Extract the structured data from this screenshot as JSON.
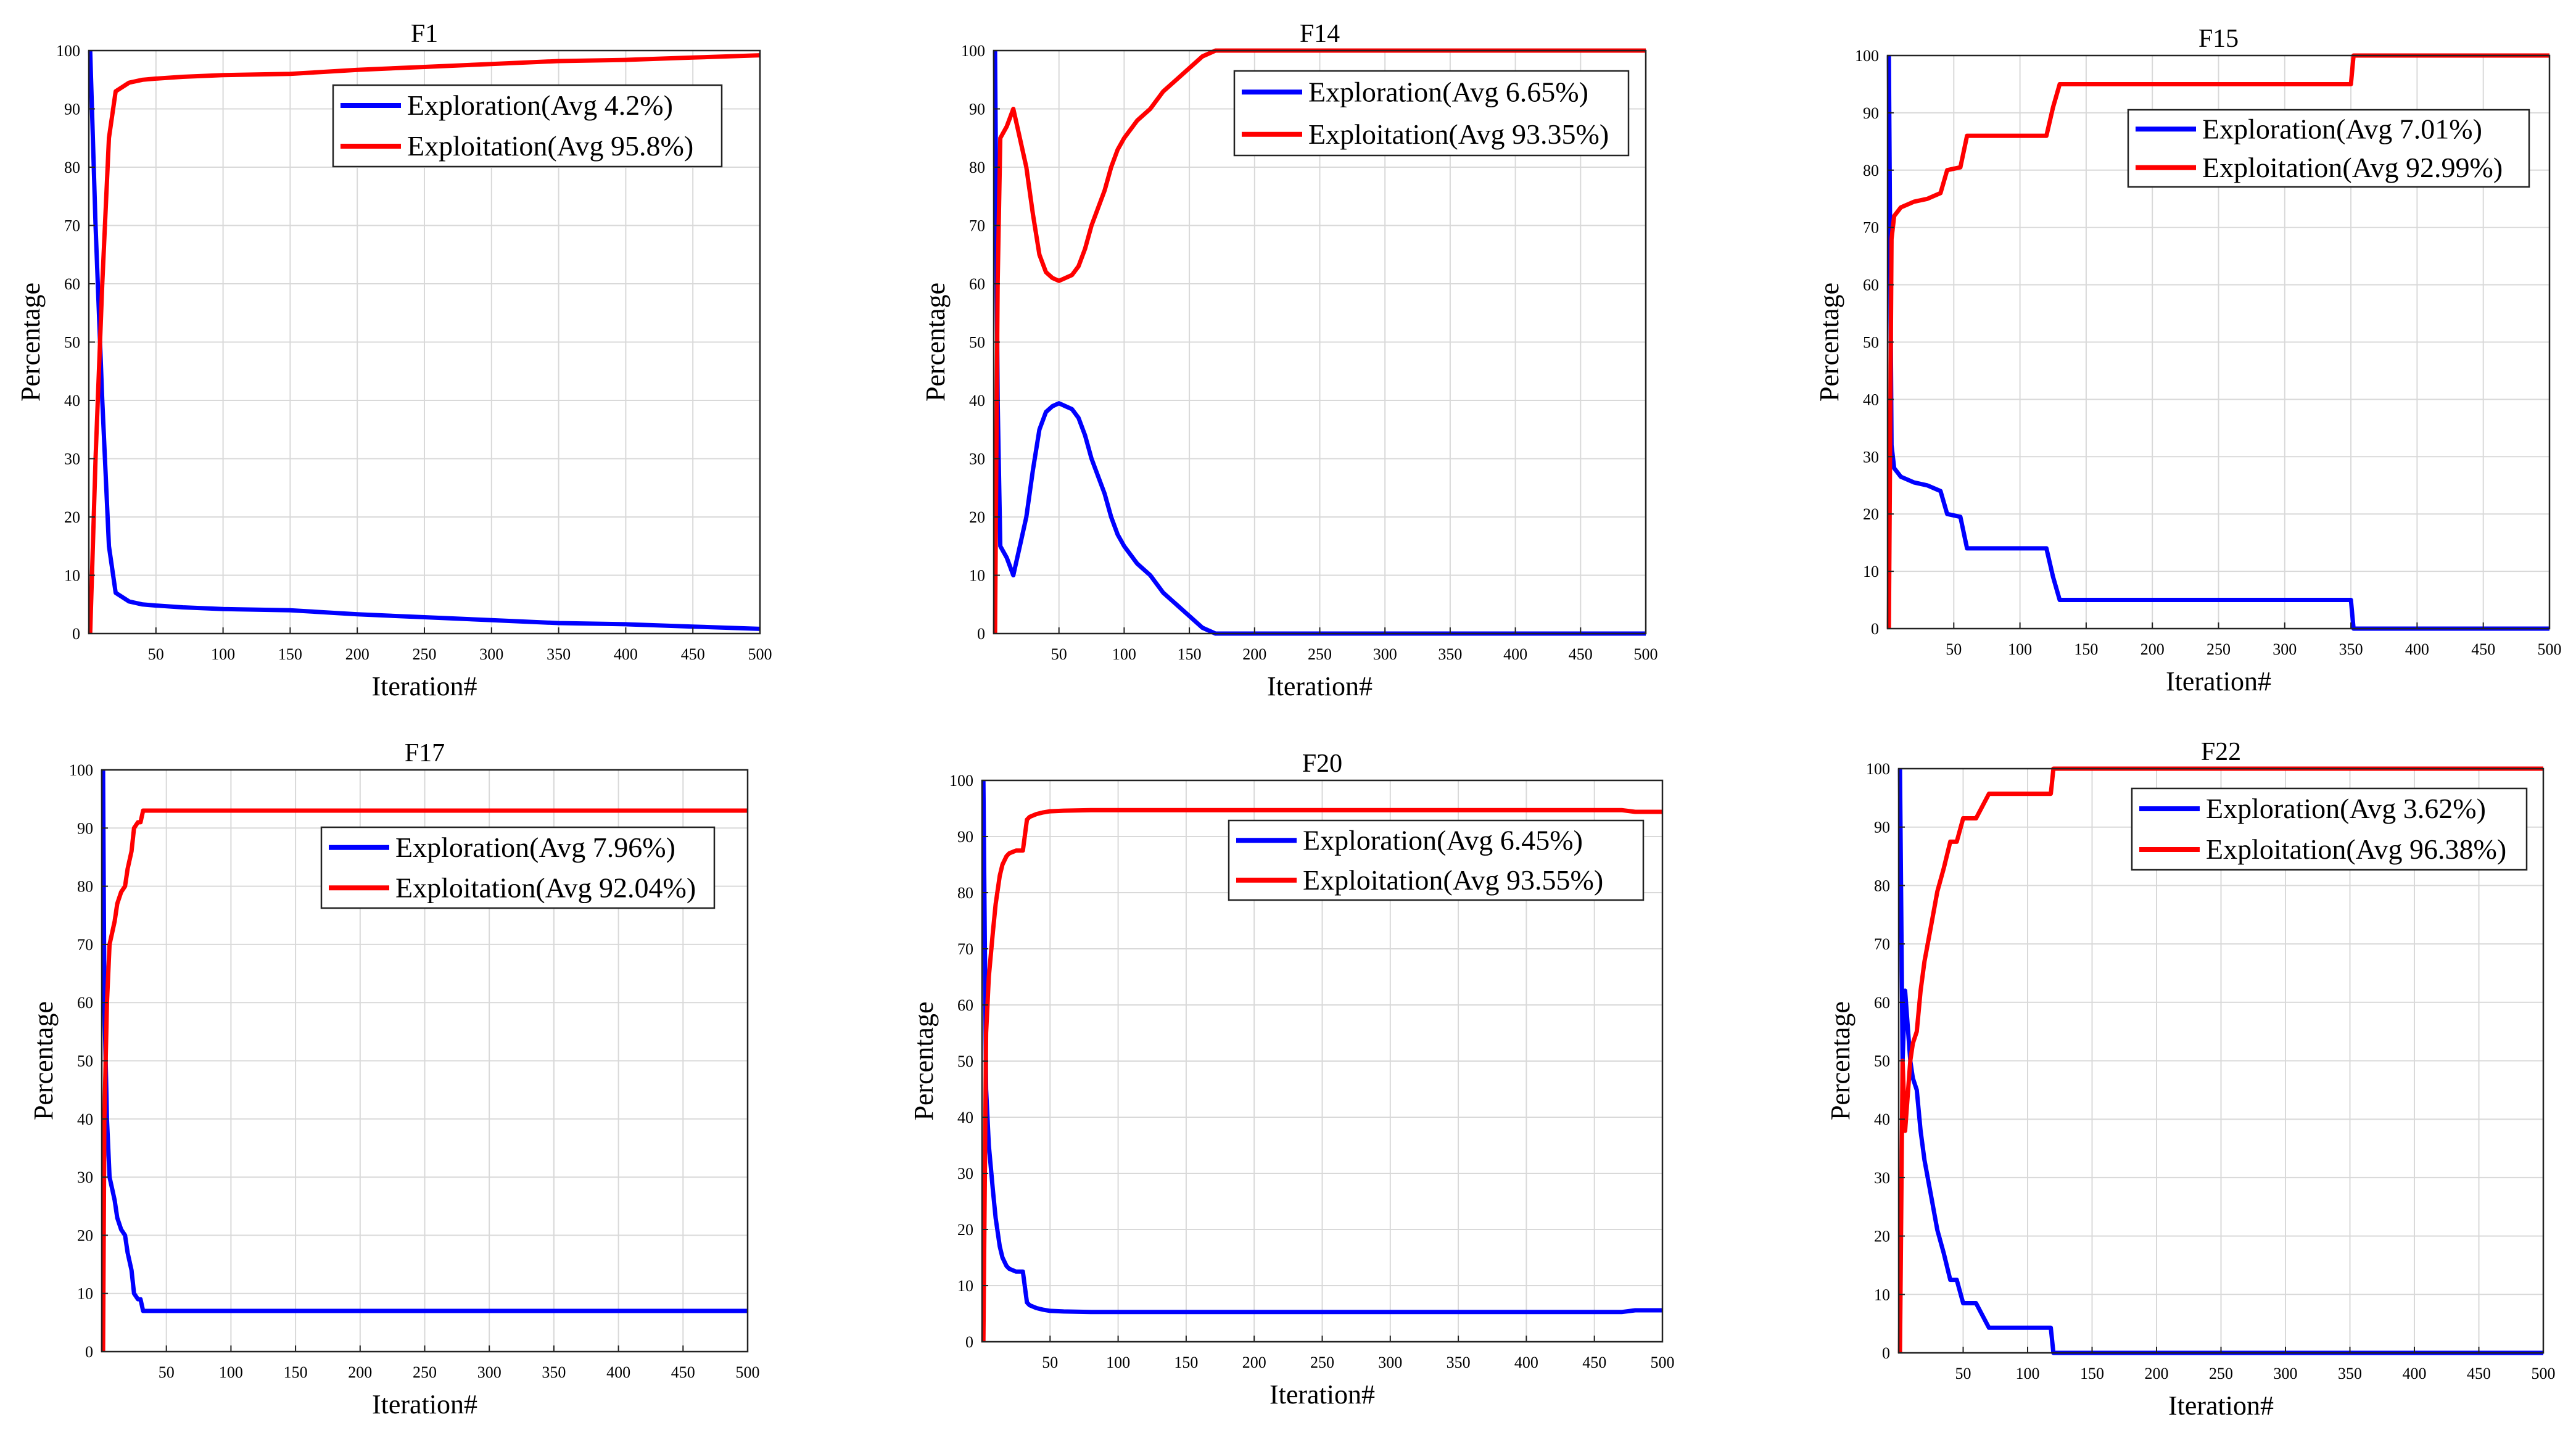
{
  "chart_data": [
    {
      "type": "line",
      "title": "F1",
      "xlabel": "Iteration#",
      "ylabel": "Percentage",
      "xlim": [
        0,
        500
      ],
      "ylim": [
        0,
        100
      ],
      "xticks": [
        50,
        100,
        150,
        200,
        250,
        300,
        350,
        400,
        450,
        500
      ],
      "yticks": [
        0,
        10,
        20,
        30,
        40,
        50,
        60,
        70,
        80,
        90,
        100
      ],
      "grid": true,
      "legend_position": "top-right",
      "series": [
        {
          "name": "Exploration(Avg 4.2%)",
          "color": "#0000ff",
          "x": [
            1,
            5,
            10,
            15,
            20,
            30,
            40,
            50,
            70,
            100,
            150,
            200,
            250,
            300,
            350,
            400,
            450,
            500
          ],
          "y": [
            100,
            70,
            40,
            15,
            7,
            5.5,
            5,
            4.8,
            4.5,
            4.2,
            4,
            3.3,
            2.8,
            2.3,
            1.8,
            1.6,
            1.2,
            0.8
          ]
        },
        {
          "name": "Exploitation(Avg 95.8%)",
          "color": "#ff0000",
          "x": [
            1,
            5,
            10,
            15,
            20,
            30,
            40,
            50,
            70,
            100,
            150,
            200,
            250,
            300,
            350,
            400,
            450,
            500
          ],
          "y": [
            0,
            30,
            60,
            85,
            93,
            94.5,
            95,
            95.2,
            95.5,
            95.8,
            96,
            96.7,
            97.2,
            97.7,
            98.2,
            98.4,
            98.8,
            99.2
          ]
        }
      ]
    },
    {
      "type": "line",
      "title": "F14",
      "xlabel": "Iteration#",
      "ylabel": "Percentage",
      "xlim": [
        0,
        500
      ],
      "ylim": [
        0,
        100
      ],
      "xticks": [
        50,
        100,
        150,
        200,
        250,
        300,
        350,
        400,
        450,
        500
      ],
      "yticks": [
        0,
        10,
        20,
        30,
        40,
        50,
        60,
        70,
        80,
        90,
        100
      ],
      "grid": true,
      "legend_position": "top-right",
      "series": [
        {
          "name": "Exploration(Avg 6.65%)",
          "color": "#0000ff",
          "x": [
            1,
            3,
            5,
            10,
            15,
            20,
            25,
            30,
            35,
            40,
            45,
            50,
            55,
            60,
            65,
            70,
            75,
            80,
            85,
            90,
            95,
            100,
            110,
            120,
            130,
            140,
            150,
            160,
            170,
            200,
            300,
            400,
            500
          ],
          "y": [
            100,
            40,
            15,
            13,
            10,
            15,
            20,
            28,
            35,
            38,
            39,
            39.5,
            39,
            38.5,
            37,
            34,
            30,
            27,
            24,
            20,
            17,
            15,
            12,
            10,
            7,
            5,
            3,
            1,
            0,
            0,
            0,
            0,
            0
          ]
        },
        {
          "name": "Exploitation(Avg 93.35%)",
          "color": "#ff0000",
          "x": [
            1,
            3,
            5,
            10,
            15,
            20,
            25,
            30,
            35,
            40,
            45,
            50,
            55,
            60,
            65,
            70,
            75,
            80,
            85,
            90,
            95,
            100,
            110,
            120,
            130,
            140,
            150,
            160,
            170,
            200,
            300,
            400,
            500
          ],
          "y": [
            0,
            60,
            85,
            87,
            90,
            85,
            80,
            72,
            65,
            62,
            61,
            60.5,
            61,
            61.5,
            63,
            66,
            70,
            73,
            76,
            80,
            83,
            85,
            88,
            90,
            93,
            95,
            97,
            99,
            100,
            100,
            100,
            100,
            100
          ]
        }
      ]
    },
    {
      "type": "line",
      "title": "F15",
      "xlabel": "Iteration#",
      "ylabel": "Percentage",
      "xlim": [
        0,
        500
      ],
      "ylim": [
        0,
        100
      ],
      "xticks": [
        50,
        100,
        150,
        200,
        250,
        300,
        350,
        400,
        450,
        500
      ],
      "yticks": [
        0,
        10,
        20,
        30,
        40,
        50,
        60,
        70,
        80,
        90,
        100
      ],
      "grid": true,
      "legend_position": "top-right",
      "series": [
        {
          "name": "Exploration(Avg 7.01%)",
          "color": "#0000ff",
          "x": [
            1,
            3,
            5,
            10,
            20,
            30,
            40,
            45,
            55,
            60,
            70,
            80,
            100,
            120,
            125,
            130,
            135,
            150,
            200,
            250,
            300,
            350,
            352,
            400,
            450,
            500
          ],
          "y": [
            100,
            32,
            28,
            26.5,
            25.5,
            25,
            24,
            20,
            19.5,
            14,
            14,
            14,
            14,
            14,
            9,
            5,
            5,
            5,
            5,
            5,
            5,
            5,
            0,
            0,
            0,
            0
          ]
        },
        {
          "name": "Exploitation(Avg 92.99%)",
          "color": "#ff0000",
          "x": [
            1,
            3,
            5,
            10,
            20,
            30,
            40,
            45,
            55,
            60,
            70,
            80,
            100,
            120,
            125,
            130,
            135,
            150,
            200,
            250,
            300,
            350,
            352,
            400,
            450,
            500
          ],
          "y": [
            0,
            68,
            72,
            73.5,
            74.5,
            75,
            76,
            80,
            80.5,
            86,
            86,
            86,
            86,
            86,
            91,
            95,
            95,
            95,
            95,
            95,
            95,
            95,
            100,
            100,
            100,
            100
          ]
        }
      ]
    },
    {
      "type": "line",
      "title": "F17",
      "xlabel": "Iteration#",
      "ylabel": "Percentage",
      "xlim": [
        0,
        500
      ],
      "ylim": [
        0,
        100
      ],
      "xticks": [
        50,
        100,
        150,
        200,
        250,
        300,
        350,
        400,
        450,
        500
      ],
      "yticks": [
        0,
        10,
        20,
        30,
        40,
        50,
        60,
        70,
        80,
        90,
        100
      ],
      "grid": true,
      "legend_position": "top-right",
      "series": [
        {
          "name": "Exploration(Avg 7.96%)",
          "color": "#0000ff",
          "x": [
            1,
            2,
            4,
            6,
            8,
            10,
            12,
            15,
            18,
            20,
            23,
            25,
            28,
            30,
            32,
            35,
            40,
            50,
            100,
            200,
            300,
            400,
            500
          ],
          "y": [
            100,
            60,
            40,
            30,
            28,
            26,
            23,
            21,
            20,
            17,
            14,
            10,
            9,
            9,
            7,
            7,
            7,
            7,
            7,
            7,
            7,
            7,
            7
          ]
        },
        {
          "name": "Exploitation(Avg 92.04%)",
          "color": "#ff0000",
          "x": [
            1,
            2,
            4,
            6,
            8,
            10,
            12,
            15,
            18,
            20,
            23,
            25,
            28,
            30,
            32,
            35,
            40,
            50,
            100,
            200,
            300,
            400,
            500
          ],
          "y": [
            0,
            40,
            60,
            70,
            72,
            74,
            77,
            79,
            80,
            83,
            86,
            90,
            91,
            91,
            93,
            93,
            93,
            93,
            93,
            93,
            93,
            93,
            93
          ]
        }
      ]
    },
    {
      "type": "line",
      "title": "F20",
      "xlabel": "Iteration#",
      "ylabel": "Percentage",
      "xlim": [
        0,
        500
      ],
      "ylim": [
        0,
        100
      ],
      "xticks": [
        50,
        100,
        150,
        200,
        250,
        300,
        350,
        400,
        450,
        500
      ],
      "yticks": [
        0,
        10,
        20,
        30,
        40,
        50,
        60,
        70,
        80,
        90,
        100
      ],
      "grid": true,
      "legend_position": "top-right",
      "series": [
        {
          "name": "Exploration(Avg 6.45%)",
          "color": "#0000ff",
          "x": [
            1,
            3,
            5,
            8,
            10,
            13,
            15,
            18,
            20,
            25,
            30,
            33,
            35,
            40,
            45,
            50,
            60,
            80,
            100,
            150,
            200,
            300,
            400,
            470,
            480,
            500
          ],
          "y": [
            100,
            45,
            35,
            27,
            22,
            17,
            15,
            13.5,
            13,
            12.5,
            12.5,
            7,
            6.5,
            6,
            5.7,
            5.5,
            5.4,
            5.3,
            5.3,
            5.3,
            5.3,
            5.3,
            5.3,
            5.3,
            5.6,
            5.6
          ]
        },
        {
          "name": "Exploitation(Avg 93.55%)",
          "color": "#ff0000",
          "x": [
            1,
            3,
            5,
            8,
            10,
            13,
            15,
            18,
            20,
            25,
            30,
            33,
            35,
            40,
            45,
            50,
            60,
            80,
            100,
            150,
            200,
            300,
            400,
            470,
            480,
            500
          ],
          "y": [
            0,
            55,
            65,
            73,
            78,
            83,
            85,
            86.5,
            87,
            87.5,
            87.5,
            93,
            93.5,
            94,
            94.3,
            94.5,
            94.6,
            94.7,
            94.7,
            94.7,
            94.7,
            94.7,
            94.7,
            94.7,
            94.4,
            94.4
          ]
        }
      ]
    },
    {
      "type": "line",
      "title": "F22",
      "xlabel": "Iteration#",
      "ylabel": "Percentage",
      "xlim": [
        0,
        500
      ],
      "ylim": [
        0,
        100
      ],
      "xticks": [
        50,
        100,
        150,
        200,
        250,
        300,
        350,
        400,
        450,
        500
      ],
      "yticks": [
        0,
        10,
        20,
        30,
        40,
        50,
        60,
        70,
        80,
        90,
        100
      ],
      "grid": true,
      "legend_position": "top-right",
      "series": [
        {
          "name": "Exploration(Avg 3.62%)",
          "color": "#0000ff",
          "x": [
            1,
            3,
            5,
            7,
            9,
            11,
            14,
            17,
            20,
            25,
            30,
            35,
            40,
            45,
            50,
            60,
            70,
            80,
            100,
            118,
            120,
            150,
            200,
            300,
            400,
            500
          ],
          "y": [
            100,
            50,
            62,
            56,
            50,
            47,
            45,
            38,
            33,
            27,
            21,
            17,
            12.5,
            12.5,
            8.5,
            8.5,
            4.3,
            4.3,
            4.3,
            4.3,
            0,
            0,
            0,
            0,
            0,
            0
          ]
        },
        {
          "name": "Exploitation(Avg 96.38%)",
          "color": "#ff0000",
          "x": [
            1,
            3,
            5,
            7,
            9,
            11,
            14,
            17,
            20,
            25,
            30,
            35,
            40,
            45,
            50,
            60,
            70,
            80,
            100,
            118,
            120,
            150,
            200,
            300,
            400,
            500
          ],
          "y": [
            0,
            50,
            38,
            44,
            50,
            53,
            55,
            62,
            67,
            73,
            79,
            83,
            87.5,
            87.5,
            91.5,
            91.5,
            95.7,
            95.7,
            95.7,
            95.7,
            100,
            100,
            100,
            100,
            100,
            100
          ]
        }
      ]
    }
  ]
}
